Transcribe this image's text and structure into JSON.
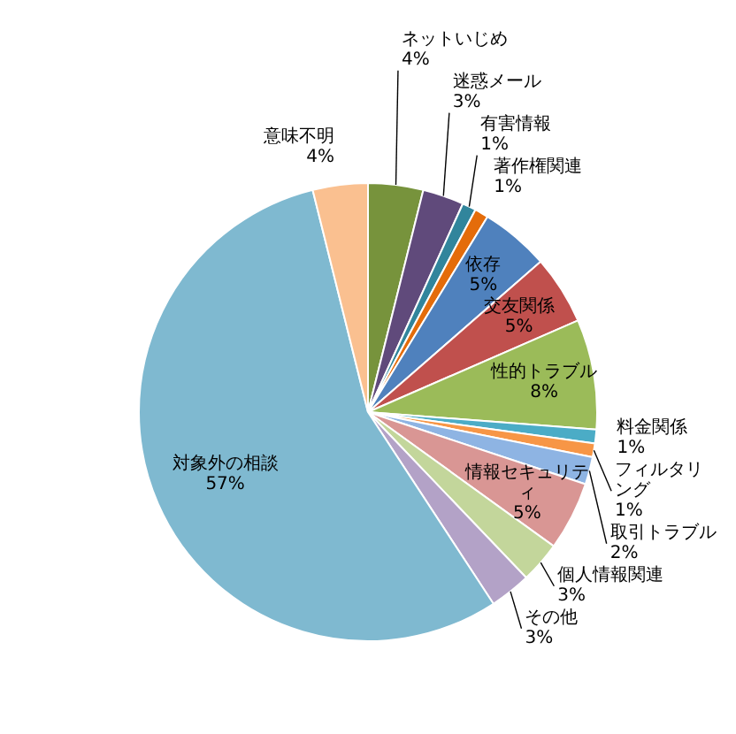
{
  "chart_data": {
    "type": "pie",
    "categories": [
      "ネットいじめ",
      "迷惑メール",
      "有害情報",
      "著作権関連",
      "依存",
      "交友関係",
      "性的トラブル",
      "料金関係",
      "フィルタリング",
      "取引トラブル",
      "情報セキュリティ",
      "個人情報関連",
      "その他",
      "対象外の相談",
      "意味不明"
    ],
    "values": [
      4,
      3,
      1,
      1,
      5,
      5,
      8,
      1,
      1,
      2,
      5,
      3,
      3,
      57,
      4
    ],
    "colors": [
      "#77933c",
      "#604a7b",
      "#31859c",
      "#e46c0a",
      "#4f81bd",
      "#c0504d",
      "#9bbb59",
      "#4bacc6",
      "#f79646",
      "#8eb4e3",
      "#d99694",
      "#c3d69b",
      "#b3a2c7",
      "#7fb9d0",
      "#fac090"
    ],
    "value_labels": [
      "4%",
      "3%",
      "1%",
      "1%",
      "5%",
      "5%",
      "8%",
      "1%",
      "1%",
      "2%",
      "5%",
      "3%",
      "3%",
      "57%",
      "4%"
    ],
    "legend": false
  }
}
